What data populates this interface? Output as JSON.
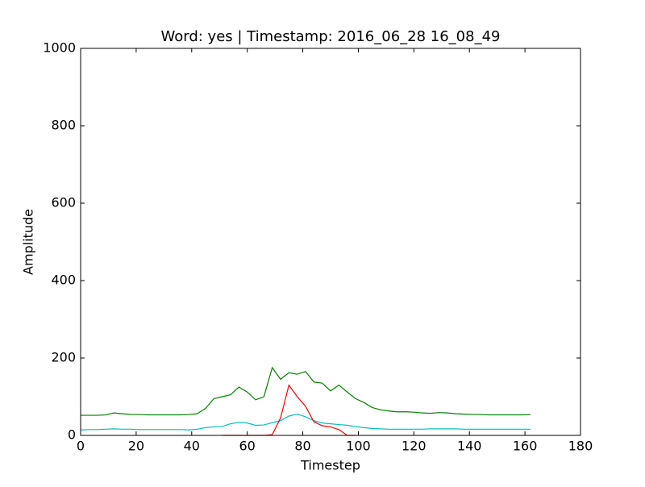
{
  "chart_data": {
    "type": "line",
    "title": "Word: yes    |    Timestamp: 2016_06_28 16_08_49",
    "xlabel": "Timestep",
    "ylabel": "Amplitude",
    "x": [
      0,
      3,
      6,
      9,
      12,
      15,
      18,
      21,
      24,
      27,
      30,
      33,
      36,
      39,
      42,
      45,
      48,
      51,
      54,
      57,
      60,
      63,
      66,
      69,
      72,
      75,
      78,
      81,
      84,
      87,
      90,
      93,
      96,
      99,
      102,
      105,
      108,
      111,
      114,
      117,
      120,
      123,
      126,
      129,
      132,
      135,
      138,
      141,
      144,
      147,
      150,
      153,
      156,
      159,
      162
    ],
    "series": [
      {
        "color": "#008000",
        "values": [
          52,
          52,
          52,
          53,
          58,
          56,
          54,
          54,
          53,
          53,
          53,
          53,
          53,
          54,
          56,
          70,
          95,
          100,
          105,
          125,
          112,
          92,
          100,
          175,
          145,
          162,
          158,
          165,
          138,
          135,
          115,
          130,
          112,
          95,
          85,
          72,
          66,
          63,
          61,
          61,
          60,
          58,
          57,
          59,
          58,
          56,
          55,
          54,
          54,
          53,
          53,
          53,
          53,
          53,
          54
        ]
      },
      {
        "color": "#00bfbf",
        "values": [
          14,
          15,
          15,
          16,
          17,
          16,
          16,
          15,
          15,
          15,
          15,
          15,
          15,
          14,
          16,
          20,
          22,
          23,
          30,
          34,
          32,
          26,
          27,
          33,
          38,
          50,
          55,
          48,
          38,
          32,
          30,
          28,
          26,
          23,
          20,
          18,
          17,
          16,
          16,
          16,
          16,
          16,
          17,
          17,
          17,
          17,
          16,
          16,
          16,
          16,
          16,
          16,
          16,
          16,
          16
        ]
      },
      {
        "color": "#ff0000",
        "values": [
          null,
          null,
          null,
          null,
          null,
          null,
          null,
          null,
          null,
          null,
          null,
          null,
          null,
          null,
          null,
          null,
          null,
          0,
          0,
          0,
          0,
          0,
          0,
          2,
          45,
          130,
          100,
          75,
          35,
          25,
          22,
          15,
          0,
          0,
          null,
          null,
          null,
          null,
          null,
          null,
          null,
          null,
          null,
          null,
          null,
          null,
          null,
          null,
          null,
          null,
          null,
          null,
          null,
          null,
          null
        ]
      }
    ],
    "xlim": [
      0,
      180
    ],
    "xticks": [
      0,
      20,
      40,
      60,
      80,
      100,
      120,
      140,
      160,
      180
    ],
    "ylim": [
      0,
      1000
    ],
    "yticks": [
      0,
      200,
      400,
      600,
      800,
      1000
    ]
  }
}
